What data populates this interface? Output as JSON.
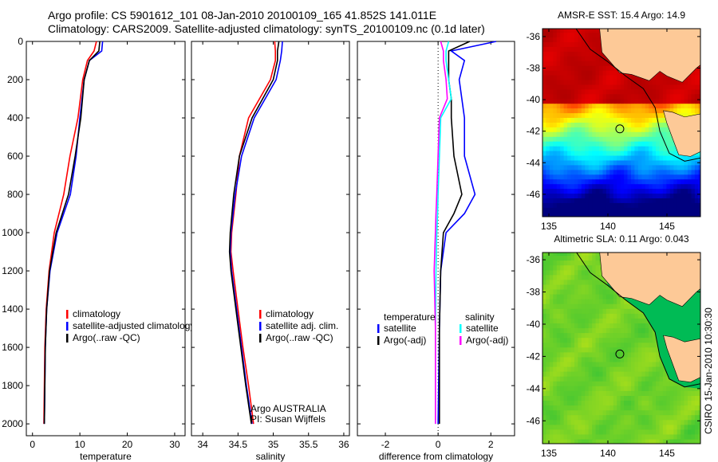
{
  "title_line1": "Argo profile: CS 5901612_101 08-Jan-2010 20100109_165 41.852S 141.011E",
  "title_line2": "Climatology: CARS2009. Satellite-adjusted climatology: synTS_20100109.nc (0.1d later)",
  "footer_stamp": "CSIRO 15-Jan-2010 10:30:30",
  "colors": {
    "clim": "#ff0000",
    "sat": "#0000ff",
    "argo": "#000000",
    "sal_sat": "#00ffff",
    "sal_argo": "#ff00ff"
  },
  "chart_data": [
    {
      "type": "line",
      "id": "temperature",
      "xlabel": "temperature",
      "ylabel": "",
      "xlim": [
        -1.3,
        32.2
      ],
      "ylim": [
        2062,
        0
      ],
      "xticks": [
        0,
        10,
        20,
        30
      ],
      "yticks": [
        0,
        200,
        400,
        600,
        800,
        1000,
        1200,
        1400,
        1600,
        1800,
        2000
      ],
      "depth": [
        0,
        50,
        100,
        200,
        400,
        600,
        800,
        1000,
        1200,
        1400,
        1600,
        1800,
        2000
      ],
      "series": [
        {
          "name": "climatology",
          "color": "#ff0000",
          "values": [
            13.5,
            13.0,
            11.6,
            10.6,
            9.6,
            7.9,
            6.6,
            4.6,
            3.5,
            2.9,
            2.6,
            2.5,
            2.4
          ]
        },
        {
          "name": "satellite-adjusted climatology",
          "color": "#0000ff",
          "values": [
            14.8,
            14.6,
            12.0,
            10.9,
            10.0,
            9.2,
            8.0,
            5.2,
            3.7,
            3.0,
            2.7,
            2.6,
            2.5
          ]
        },
        {
          "name": "Argo(..raw -QC)",
          "color": "#000000",
          "values": [
            14.2,
            14.0,
            12.0,
            10.9,
            10.2,
            9.0,
            7.6,
            5.0,
            3.6,
            3.0,
            2.7,
            2.6,
            2.5
          ]
        }
      ],
      "legend": [
        "climatology",
        "satellite-adjusted climatology",
        "Argo(..raw -QC)"
      ]
    },
    {
      "type": "line",
      "id": "salinity",
      "xlabel": "salinity",
      "xlim": [
        33.84,
        36.08
      ],
      "ylim": [
        2062,
        0
      ],
      "xticks": [
        34,
        34.5,
        35,
        35.5,
        36
      ],
      "depth": [
        0,
        50,
        100,
        200,
        400,
        600,
        800,
        1000,
        1100,
        1200,
        1400,
        1600,
        1800,
        2000
      ],
      "series": [
        {
          "name": "climatology",
          "color": "#ff0000",
          "values": [
            35.02,
            35.03,
            35.03,
            34.96,
            34.65,
            34.52,
            34.47,
            34.41,
            34.4,
            34.43,
            34.5,
            34.57,
            34.65,
            34.72
          ]
        },
        {
          "name": "satellite adj. clim.",
          "color": "#0000ff",
          "values": [
            35.13,
            35.12,
            35.1,
            35.04,
            34.73,
            34.55,
            34.46,
            34.4,
            34.39,
            34.41,
            34.48,
            34.55,
            34.62,
            34.7
          ]
        },
        {
          "name": "Argo(..raw -QC)",
          "color": "#000000",
          "values": [
            35.08,
            35.06,
            35.06,
            35.0,
            34.7,
            34.52,
            34.44,
            34.39,
            34.38,
            34.4,
            34.47,
            34.54,
            34.61,
            34.69
          ]
        }
      ],
      "legend": [
        "climatology",
        "satellite adj. clim.",
        "Argo(..raw -QC)"
      ],
      "annotation": [
        "Argo AUSTRALIA",
        "PI: Susan Wijffels"
      ]
    },
    {
      "type": "line",
      "id": "difference",
      "xlabel": "difference from climatology",
      "xlim": [
        -3.06,
        2.9
      ],
      "ylim": [
        2062,
        0
      ],
      "xticks": [
        -2,
        0,
        2
      ],
      "depth": [
        0,
        50,
        100,
        200,
        300,
        400,
        600,
        800,
        900,
        1000,
        1200,
        1500,
        2000
      ],
      "series": [
        {
          "name": "temperature satellite",
          "color": "#0000ff",
          "values": [
            2.2,
            0.5,
            1.0,
            0.8,
            0.9,
            1.0,
            1.0,
            1.4,
            1.0,
            0.3,
            0.1,
            0.05,
            0.0
          ]
        },
        {
          "name": "temperature Argo(-adj)",
          "color": "#000000",
          "values": [
            1.2,
            0.4,
            0.4,
            0.4,
            0.5,
            0.5,
            0.6,
            0.9,
            0.6,
            0.2,
            0.1,
            0.05,
            0.05
          ]
        },
        {
          "name": "salinity satellite",
          "color": "#00ffff",
          "values": [
            0.4,
            0.3,
            0.3,
            0.4,
            0.5,
            0.1,
            0.05,
            0.0,
            -0.02,
            -0.05,
            -0.08,
            -0.1,
            -0.1
          ]
        },
        {
          "name": "salinity Argo(-adj)",
          "color": "#ff00ff",
          "values": [
            0.1,
            0.2,
            0.2,
            0.3,
            0.35,
            0.05,
            0.0,
            -0.05,
            -0.08,
            -0.1,
            -0.15,
            -0.1,
            -0.1
          ]
        }
      ],
      "legend_headers": [
        "temperature",
        "salinity"
      ],
      "legend": [
        "satellite",
        "Argo(-adj)",
        "satellite",
        "Argo(-adj)"
      ]
    },
    {
      "type": "heatmap",
      "id": "sst-map",
      "title": "AMSR-E SST: 15.4 Argo: 14.9",
      "xlim": [
        134.46,
        147.84
      ],
      "ylim": [
        -47.42,
        -35.5
      ],
      "xticks": [
        135,
        140,
        145
      ],
      "yticks": [
        -36,
        -38,
        -40,
        -42,
        -44,
        -46
      ],
      "argo_position": [
        141.011,
        -41.852
      ]
    },
    {
      "type": "heatmap",
      "id": "sla-map",
      "title": "Altimetric SLA: 0.11 Argo: 0.043",
      "xlim": [
        134.46,
        147.84
      ],
      "ylim": [
        -47.42,
        -35.5
      ],
      "xticks": [
        135,
        140,
        145
      ],
      "yticks": [
        -36,
        -38,
        -40,
        -42,
        -44,
        -46
      ],
      "argo_position": [
        141.011,
        -41.852
      ]
    }
  ]
}
